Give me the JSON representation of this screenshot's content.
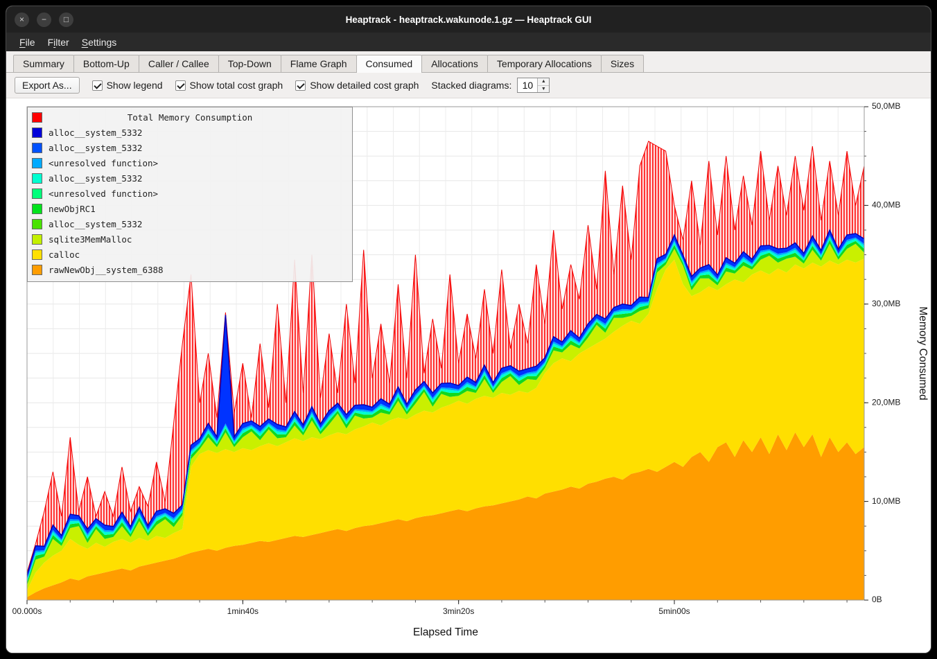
{
  "window": {
    "title": "Heaptrack - heaptrack.wakunode.1.gz — Heaptrack GUI",
    "buttons": [
      {
        "name": "close",
        "glyph": "×"
      },
      {
        "name": "minimize",
        "glyph": "−"
      },
      {
        "name": "maximize",
        "glyph": "□"
      }
    ]
  },
  "menu": {
    "items": [
      {
        "label": "File",
        "mnemonic": 0
      },
      {
        "label": "Filter",
        "mnemonic": 1
      },
      {
        "label": "Settings",
        "mnemonic": 0
      }
    ]
  },
  "tabs": {
    "items": [
      {
        "label": "Summary",
        "active": false
      },
      {
        "label": "Bottom-Up",
        "active": false
      },
      {
        "label": "Caller / Callee",
        "active": false
      },
      {
        "label": "Top-Down",
        "active": false
      },
      {
        "label": "Flame Graph",
        "active": false
      },
      {
        "label": "Consumed",
        "active": true
      },
      {
        "label": "Allocations",
        "active": false
      },
      {
        "label": "Temporary Allocations",
        "active": false
      },
      {
        "label": "Sizes",
        "active": false
      }
    ]
  },
  "toolbar": {
    "export_label": "Export As...",
    "checkboxes": [
      {
        "label": "Show legend",
        "checked": true
      },
      {
        "label": "Show total cost graph",
        "checked": true
      },
      {
        "label": "Show detailed cost graph",
        "checked": true
      }
    ],
    "stacked_label": "Stacked diagrams:",
    "stacked_value": "10"
  },
  "chart_data": {
    "type": "area",
    "stacked": true,
    "title": "Total Memory Consumption",
    "xlabel": "Elapsed Time",
    "ylabel": "Memory Consumed",
    "xlim": [
      0,
      388
    ],
    "ylim": [
      0,
      50
    ],
    "x_unit": "seconds",
    "n_points": 98,
    "t_step": 4,
    "x_ticks": [
      {
        "t": 0,
        "label": "00.000s"
      },
      {
        "t": 100,
        "label": "1min40s"
      },
      {
        "t": 200,
        "label": "3min20s"
      },
      {
        "t": 300,
        "label": "5min00s"
      }
    ],
    "x_minor_tick_step": 20,
    "y_ticks": [
      {
        "v": 0,
        "label": "0B"
      },
      {
        "v": 10,
        "label": "10,0MB"
      },
      {
        "v": 20,
        "label": "20,0MB"
      },
      {
        "v": 30,
        "label": "30,0MB"
      },
      {
        "v": 40,
        "label": "40,0MB"
      },
      {
        "v": 50,
        "label": "50,0MB"
      }
    ],
    "y_minor_step": 2.5,
    "series": [
      {
        "name": "rawNewObj__system_6388",
        "color": "#ff9d00",
        "values": [
          0.3,
          0.8,
          1.2,
          1.5,
          1.8,
          2.2,
          2.0,
          2.4,
          2.6,
          2.8,
          3.0,
          3.2,
          3.0,
          3.4,
          3.6,
          3.8,
          4.0,
          4.2,
          4.5,
          4.8,
          5.0,
          5.2,
          5.0,
          5.3,
          5.5,
          5.6,
          5.8,
          6.0,
          5.9,
          6.1,
          6.3,
          6.5,
          6.4,
          6.6,
          6.8,
          7.0,
          7.2,
          7.0,
          7.3,
          7.5,
          7.6,
          7.8,
          8.0,
          8.2,
          8.0,
          8.3,
          8.5,
          8.6,
          8.8,
          9.0,
          9.2,
          9.0,
          9.3,
          9.5,
          9.6,
          9.8,
          10.0,
          10.2,
          10.5,
          10.3,
          10.8,
          11.0,
          11.2,
          11.5,
          11.3,
          11.8,
          12.0,
          12.3,
          12.5,
          12.2,
          12.8,
          13.0,
          13.3,
          13.0,
          13.5,
          14.0,
          13.5,
          14.5,
          15.0,
          14.0,
          15.5,
          16.0,
          14.5,
          16.2,
          15.0,
          16.5,
          14.8,
          16.8,
          15.2,
          17.0,
          15.5,
          16.8,
          14.5,
          16.5,
          15.0,
          16.0,
          14.8,
          15.5
        ]
      },
      {
        "name": "calloc",
        "color": "#ffdf00",
        "values": [
          0.7,
          2.0,
          2.6,
          3.0,
          3.2,
          4.0,
          3.6,
          2.8,
          3.2,
          2.6,
          2.9,
          3.0,
          2.8,
          2.9,
          2.4,
          2.7,
          2.3,
          2.6,
          2.7,
          8.7,
          9.8,
          10.0,
          9.9,
          10.0,
          9.5,
          9.8,
          9.4,
          9.6,
          10.0,
          9.5,
          9.7,
          9.9,
          9.7,
          9.9,
          9.5,
          9.7,
          9.8,
          9.8,
          10.0,
          10.1,
          10.4,
          9.9,
          10.2,
          10.3,
          10.3,
          10.5,
          10.7,
          10.4,
          10.7,
          10.8,
          11.0,
          10.9,
          11.1,
          11.2,
          10.9,
          11.2,
          10.8,
          11.0,
          10.5,
          11.2,
          12.2,
          13.0,
          13.3,
          12.7,
          13.7,
          13.7,
          14.0,
          14.2,
          14.7,
          15.6,
          15.5,
          15.0,
          15.7,
          18.5,
          20.0,
          20.5,
          18.5,
          16.3,
          16.2,
          17.8,
          15.9,
          16.0,
          18.0,
          16.0,
          18.0,
          16.9,
          18.2,
          16.8,
          18.0,
          17.0,
          18.1,
          17.4,
          19.3,
          17.9,
          19.0,
          18.5,
          19.4,
          19.1
        ]
      },
      {
        "name": "sqlite3MemMalloc",
        "color": "#c9f000",
        "pattern": [
          0.5,
          1.3,
          0.6,
          1.7,
          0.5,
          1.1,
          1.9,
          0.6,
          1.4,
          0.8
        ]
      },
      {
        "name": "newObjRC1",
        "color": "#12d81f",
        "pattern": [
          0.3,
          0.4
        ]
      },
      {
        "name": "alloc__system_5332",
        "color": "#00ffd0",
        "pattern": [
          0.2,
          0.3
        ]
      },
      {
        "name": "<unresolved function>",
        "color": "#00aaff",
        "pattern": [
          0.15,
          0.2
        ]
      },
      {
        "name": "alloc__system_5332",
        "color": "#0033ff",
        "values": [
          0.4,
          0.5,
          0.4,
          0.5,
          0.4,
          0.5,
          0.4,
          0.5,
          0.4,
          0.5,
          0.4,
          0.5,
          0.4,
          0.5,
          0.4,
          0.5,
          0.4,
          0.5,
          0.4,
          0.5,
          0.4,
          0.5,
          0.4,
          11.0,
          0.4,
          0.5,
          0.4,
          0.5,
          0.4,
          0.5,
          0.4,
          0.5,
          0.4,
          0.5,
          0.4,
          0.5,
          0.4,
          0.5,
          0.4,
          0.5,
          0.4,
          0.5,
          0.4,
          0.5,
          0.4,
          0.5,
          0.4,
          0.5,
          0.4,
          0.5,
          0.4,
          0.5,
          0.4,
          0.5,
          0.4,
          0.5,
          0.4,
          0.5,
          0.4,
          0.5,
          0.4,
          0.5,
          0.4,
          0.5,
          0.4,
          0.5,
          0.4,
          0.5,
          0.4,
          0.5,
          0.4,
          0.5,
          0.4,
          0.5,
          0.4,
          0.5,
          0.4,
          0.5,
          0.4,
          0.5,
          0.4,
          0.5,
          0.4,
          0.5,
          0.4,
          0.5,
          0.4,
          0.5,
          0.4,
          0.5,
          0.4,
          0.5,
          0.4,
          0.5,
          0.4,
          0.5,
          0.4,
          0.5
        ]
      }
    ],
    "total": {
      "name": "Total Memory Consumption",
      "color": "#ff0000",
      "values": [
        2.0,
        4.5,
        9.0,
        13.0,
        8.5,
        16.5,
        9.0,
        12.5,
        8.0,
        11.0,
        8.5,
        13.5,
        9.0,
        11.5,
        9.5,
        14.0,
        10.0,
        18.0,
        26.0,
        33.0,
        20.0,
        25.0,
        18.5,
        29.0,
        19.0,
        24.0,
        18.5,
        26.0,
        19.5,
        30.0,
        20.0,
        34.5,
        21.0,
        35.0,
        20.5,
        27.0,
        21.0,
        30.0,
        22.0,
        35.5,
        22.5,
        28.0,
        22.0,
        32.0,
        22.5,
        35.0,
        23.0,
        28.5,
        23.5,
        33.0,
        24.0,
        29.0,
        24.5,
        31.5,
        25.0,
        33.5,
        25.5,
        30.0,
        26.0,
        34.0,
        28.0,
        37.5,
        29.5,
        34.0,
        30.5,
        38.0,
        31.5,
        43.5,
        33.0,
        42.0,
        34.5,
        44.0,
        46.5,
        46.0,
        45.5,
        40.0,
        36.5,
        42.5,
        36.0,
        44.5,
        37.0,
        45.0,
        37.5,
        43.0,
        38.0,
        45.5,
        38.5,
        44.0,
        39.0,
        45.0,
        39.5,
        46.0,
        38.5,
        44.5,
        39.0,
        45.5,
        40.0,
        44.0
      ]
    },
    "legend": {
      "title": "Total Memory Consumption",
      "title_color": "#ff0000",
      "items": [
        {
          "label": "alloc__system_5332",
          "color": "#0000d9"
        },
        {
          "label": "alloc__system_5332",
          "color": "#0051ff"
        },
        {
          "label": "<unresolved function>",
          "color": "#00aaff"
        },
        {
          "label": "alloc__system_5332",
          "color": "#00ffd0"
        },
        {
          "label": "<unresolved function>",
          "color": "#00ff7b"
        },
        {
          "label": "newObjRC1",
          "color": "#00e31c"
        },
        {
          "label": "alloc__system_5332",
          "color": "#49e300"
        },
        {
          "label": "sqlite3MemMalloc",
          "color": "#c3f000"
        },
        {
          "label": "calloc",
          "color": "#ffe000"
        },
        {
          "label": "rawNewObj__system_6388",
          "color": "#ff9d00"
        }
      ]
    }
  }
}
